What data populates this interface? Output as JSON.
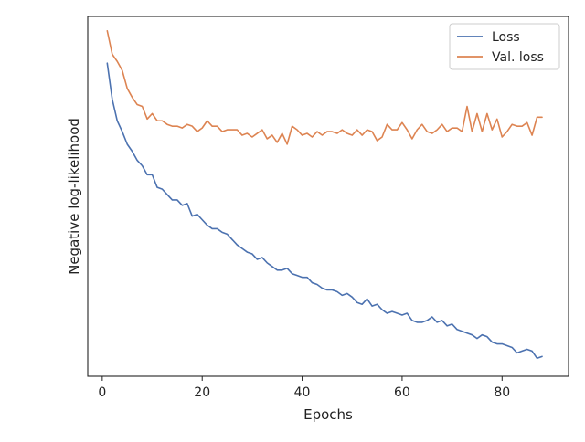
{
  "chart_data": {
    "type": "line",
    "xlabel": "Epochs",
    "ylabel": "Negative log-likelihood",
    "xlim": [
      -2.9,
      93.3
    ],
    "ylim": [
      0,
      100
    ],
    "x_ticks": [
      0,
      20,
      40,
      60,
      80
    ],
    "y_ticks_shown": false,
    "grid": false,
    "legend_position": "top-right",
    "x": [
      1,
      2,
      3,
      4,
      5,
      6,
      7,
      8,
      9,
      10,
      11,
      12,
      13,
      14,
      15,
      16,
      17,
      18,
      19,
      20,
      21,
      22,
      23,
      24,
      25,
      26,
      27,
      28,
      29,
      30,
      31,
      32,
      33,
      34,
      35,
      36,
      37,
      38,
      39,
      40,
      41,
      42,
      43,
      44,
      45,
      46,
      47,
      48,
      49,
      50,
      51,
      52,
      53,
      54,
      55,
      56,
      57,
      58,
      59,
      60,
      61,
      62,
      63,
      64,
      65,
      66,
      67,
      68,
      69,
      70,
      71,
      72,
      73,
      74,
      75,
      76,
      77,
      78,
      79,
      80,
      81,
      82,
      83,
      84,
      85,
      86,
      87,
      88
    ],
    "series": [
      {
        "name": "Loss",
        "color": "#4c72b0",
        "values": [
          87.0,
          77.0,
          71.0,
          68.0,
          64.5,
          62.5,
          60.0,
          58.5,
          56.0,
          56.0,
          52.5,
          52.0,
          50.5,
          49.0,
          49.0,
          47.5,
          48.0,
          44.5,
          45.0,
          43.5,
          42.0,
          41.0,
          41.0,
          40.0,
          39.5,
          38.0,
          36.5,
          35.5,
          34.5,
          34.0,
          32.5,
          33.0,
          31.5,
          30.5,
          29.5,
          29.5,
          30.0,
          28.5,
          28.0,
          27.5,
          27.5,
          26.0,
          25.5,
          24.5,
          24.0,
          24.0,
          23.5,
          22.5,
          23.0,
          22.0,
          20.5,
          20.0,
          21.5,
          19.5,
          20.0,
          18.5,
          17.5,
          18.0,
          17.5,
          17.0,
          17.5,
          15.5,
          15.0,
          15.0,
          15.5,
          16.5,
          15.0,
          15.5,
          14.0,
          14.5,
          13.0,
          12.5,
          12.0,
          11.5,
          10.5,
          11.5,
          11.0,
          9.5,
          9.0,
          9.0,
          8.5,
          8.0,
          6.5,
          7.0,
          7.5,
          7.0,
          5.0,
          5.5
        ]
      },
      {
        "name": "Val. loss",
        "color": "#dd8452",
        "values": [
          96.0,
          89.5,
          87.5,
          85.0,
          80.0,
          77.5,
          75.5,
          75.0,
          71.5,
          73.0,
          71.0,
          71.0,
          70.0,
          69.5,
          69.5,
          69.0,
          70.0,
          69.5,
          68.0,
          69.0,
          71.0,
          69.5,
          69.5,
          68.0,
          68.5,
          68.5,
          68.5,
          67.0,
          67.5,
          66.5,
          67.5,
          68.5,
          66.0,
          67.0,
          65.0,
          67.5,
          64.5,
          69.5,
          68.5,
          67.0,
          67.5,
          66.5,
          68.0,
          67.0,
          68.0,
          68.0,
          67.5,
          68.5,
          67.5,
          67.0,
          68.5,
          67.0,
          68.5,
          68.0,
          65.5,
          66.5,
          70.0,
          68.5,
          68.5,
          70.5,
          68.5,
          66.0,
          68.5,
          70.0,
          68.0,
          67.5,
          68.5,
          70.0,
          68.0,
          69.0,
          69.0,
          68.0,
          75.0,
          68.0,
          73.0,
          68.0,
          73.0,
          68.5,
          71.5,
          66.5,
          68.0,
          70.0,
          69.5,
          69.5,
          70.5,
          67.0,
          72.0,
          72.0
        ]
      }
    ]
  }
}
